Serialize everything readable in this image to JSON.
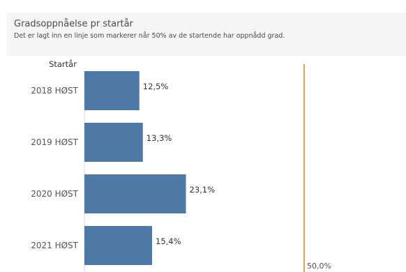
{
  "header": {
    "title": "Gradsoppnåelse pr startår",
    "subtitle": "Det er lagt inn en linje som markerer når 50% av de startende har oppnådd grad."
  },
  "colors": {
    "bar": "#4e79a7",
    "reference_line": "#f0a04b",
    "text": "#555555",
    "axis": "#d9d9d9"
  },
  "chart_data": {
    "type": "bar",
    "orientation": "horizontal",
    "category_header": "Startår",
    "categories": [
      "2018 HØST",
      "2019 HØST",
      "2020 HØST",
      "2021 HØST"
    ],
    "values": [
      12.5,
      13.3,
      23.1,
      15.4
    ],
    "value_labels": [
      "12,5%",
      "13,3%",
      "23,1%",
      "15,4%"
    ],
    "xlim": [
      0,
      52
    ],
    "grid": false,
    "reference_line": {
      "value": 50.0,
      "label": "50,0%"
    }
  }
}
